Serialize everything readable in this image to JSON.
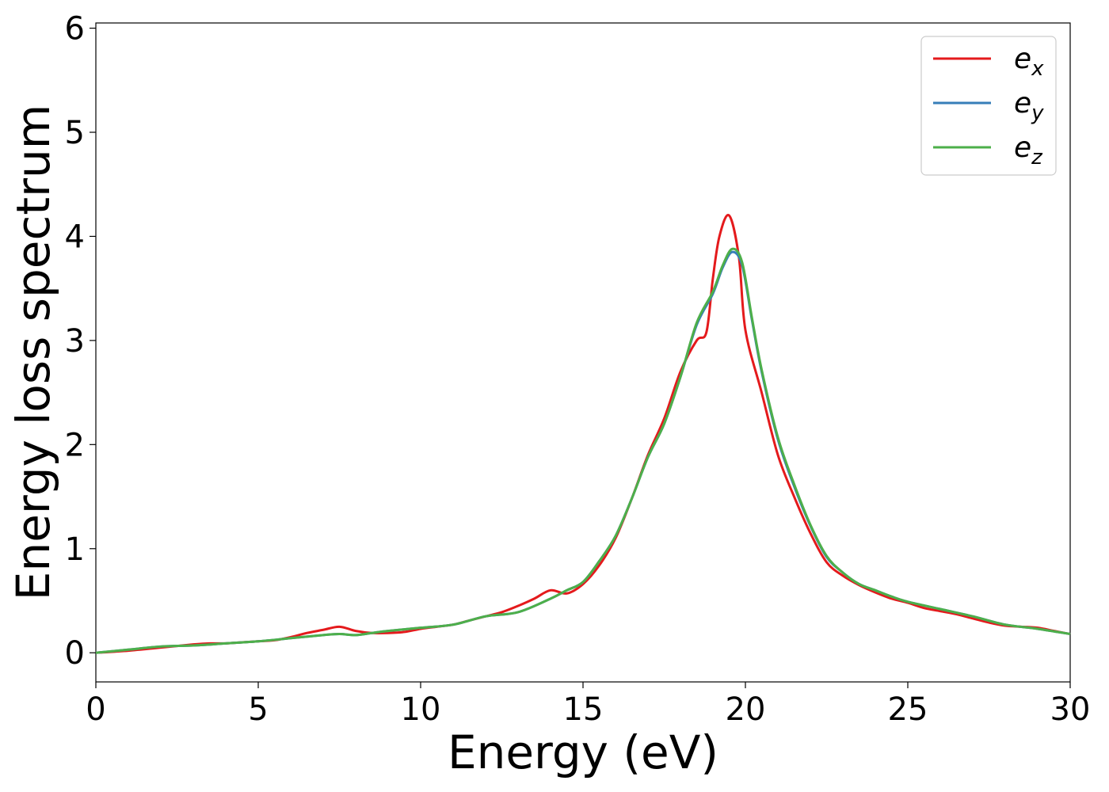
{
  "chart_data": {
    "type": "line",
    "xlabel": "Energy (eV)",
    "ylabel": "Energy loss spectrum",
    "xlim": [
      0,
      30
    ],
    "ylim": [
      -0.28,
      6.05
    ],
    "xticks": [
      "0",
      "5",
      "10",
      "15",
      "20",
      "25",
      "30"
    ],
    "yticks": [
      "0",
      "1",
      "2",
      "3",
      "4",
      "5",
      "6"
    ],
    "grid": false,
    "legend_position": "top-right",
    "series": [
      {
        "name": "e",
        "subscript": "x",
        "color": "#e41a1c",
        "x": [
          0,
          1,
          2,
          3,
          3.5,
          4,
          4.5,
          5,
          5.5,
          6,
          6.5,
          7,
          7.5,
          8,
          8.5,
          9,
          9.5,
          10,
          10.5,
          11,
          11.5,
          12,
          12.5,
          13,
          13.5,
          14,
          14.5,
          15,
          15.5,
          16,
          16.5,
          17,
          17.5,
          18,
          18.5,
          18.8,
          19,
          19.2,
          19.5,
          19.8,
          20,
          20.5,
          21,
          21.5,
          22,
          22.5,
          23,
          23.5,
          24,
          24.5,
          25,
          25.5,
          26,
          26.5,
          27,
          27.5,
          28,
          28.5,
          29,
          29.5,
          30
        ],
        "y": [
          0.0,
          0.02,
          0.05,
          0.08,
          0.09,
          0.09,
          0.1,
          0.11,
          0.12,
          0.15,
          0.19,
          0.22,
          0.25,
          0.21,
          0.19,
          0.19,
          0.2,
          0.23,
          0.25,
          0.27,
          0.31,
          0.35,
          0.39,
          0.45,
          0.52,
          0.6,
          0.57,
          0.66,
          0.84,
          1.1,
          1.48,
          1.9,
          2.25,
          2.7,
          3.0,
          3.08,
          3.6,
          4.0,
          4.2,
          3.8,
          3.1,
          2.5,
          1.9,
          1.5,
          1.15,
          0.87,
          0.74,
          0.65,
          0.58,
          0.52,
          0.48,
          0.43,
          0.4,
          0.37,
          0.33,
          0.29,
          0.26,
          0.25,
          0.24,
          0.21,
          0.18
        ]
      },
      {
        "name": "e",
        "subscript": "y",
        "color": "#377eb8",
        "x": [
          0,
          1,
          2,
          3,
          4,
          5,
          6,
          7,
          7.5,
          8,
          8.5,
          9,
          10,
          11,
          12,
          13,
          14,
          14.5,
          15,
          15.5,
          16,
          16.5,
          17,
          17.5,
          18,
          18.5,
          19,
          19.3,
          19.6,
          19.9,
          20.2,
          20.5,
          21,
          21.5,
          22,
          22.5,
          23,
          23.5,
          24,
          24.5,
          25,
          26,
          27,
          28,
          29,
          30
        ],
        "y": [
          0.0,
          0.03,
          0.06,
          0.07,
          0.09,
          0.11,
          0.14,
          0.17,
          0.18,
          0.17,
          0.19,
          0.21,
          0.24,
          0.27,
          0.35,
          0.39,
          0.52,
          0.6,
          0.68,
          0.88,
          1.12,
          1.48,
          1.88,
          2.2,
          2.65,
          3.15,
          3.45,
          3.7,
          3.85,
          3.72,
          3.2,
          2.7,
          2.05,
          1.6,
          1.22,
          0.92,
          0.77,
          0.66,
          0.6,
          0.54,
          0.49,
          0.42,
          0.35,
          0.27,
          0.23,
          0.18
        ]
      },
      {
        "name": "e",
        "subscript": "z",
        "color": "#4daf4a",
        "x": [
          0,
          1,
          2,
          3,
          4,
          5,
          6,
          7,
          7.5,
          8,
          8.5,
          9,
          10,
          11,
          12,
          13,
          14,
          14.5,
          15,
          15.5,
          16,
          16.5,
          17,
          17.5,
          18,
          18.5,
          19,
          19.3,
          19.6,
          19.9,
          20.2,
          20.5,
          21,
          21.5,
          22,
          22.5,
          23,
          23.5,
          24,
          24.5,
          25,
          26,
          27,
          28,
          29,
          30
        ],
        "y": [
          0.0,
          0.03,
          0.06,
          0.07,
          0.09,
          0.11,
          0.14,
          0.17,
          0.18,
          0.17,
          0.19,
          0.21,
          0.24,
          0.27,
          0.35,
          0.39,
          0.52,
          0.6,
          0.68,
          0.88,
          1.12,
          1.48,
          1.88,
          2.2,
          2.65,
          3.17,
          3.47,
          3.72,
          3.88,
          3.75,
          3.22,
          2.72,
          2.07,
          1.62,
          1.23,
          0.93,
          0.77,
          0.66,
          0.6,
          0.54,
          0.49,
          0.42,
          0.35,
          0.27,
          0.23,
          0.18
        ]
      }
    ]
  }
}
